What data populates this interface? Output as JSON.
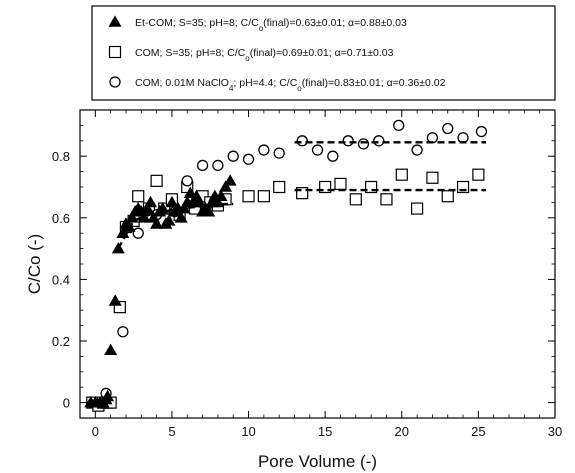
{
  "chart_data": {
    "type": "scatter",
    "xlabel": "Pore Volume (-)",
    "ylabel": "C/Co (-)",
    "xlim": [
      -1,
      30
    ],
    "ylim": [
      -0.05,
      0.95
    ],
    "x_ticks": [
      0,
      5,
      10,
      15,
      20,
      25,
      30
    ],
    "x_tick_labels": [
      "0",
      "5",
      "10",
      "15",
      "20",
      "25",
      "30"
    ],
    "y_ticks": [
      0,
      0.2,
      0.4,
      0.6,
      0.8
    ],
    "y_tick_labels": [
      "0",
      "0.2",
      "0.4",
      "0.6",
      "0.8"
    ],
    "legend_position": "top (above plot, boxed)",
    "series": [
      {
        "name": "Et-COM; S=35; pH=8; C/C",
        "name_sub": "o",
        "name_tail": "(final)=0.63±0.01; α=0.88±0.03",
        "marker": "triangle-filled",
        "points": [
          [
            -0.3,
            0.0
          ],
          [
            0.0,
            0.0
          ],
          [
            0.3,
            0.0
          ],
          [
            0.5,
            0.0
          ],
          [
            0.7,
            0.01
          ],
          [
            0.8,
            0.02
          ],
          [
            1.0,
            0.17
          ],
          [
            1.3,
            0.33
          ],
          [
            1.5,
            0.5
          ],
          [
            1.8,
            0.55
          ],
          [
            2.0,
            0.58
          ],
          [
            2.2,
            0.57
          ],
          [
            2.4,
            0.6
          ],
          [
            2.6,
            0.62
          ],
          [
            2.8,
            0.63
          ],
          [
            3.0,
            0.62
          ],
          [
            3.2,
            0.6
          ],
          [
            3.4,
            0.63
          ],
          [
            3.6,
            0.65
          ],
          [
            3.8,
            0.6
          ],
          [
            4.0,
            0.58
          ],
          [
            4.2,
            0.62
          ],
          [
            4.4,
            0.63
          ],
          [
            4.6,
            0.58
          ],
          [
            4.8,
            0.59
          ],
          [
            5.0,
            0.65
          ],
          [
            5.2,
            0.62
          ],
          [
            5.4,
            0.63
          ],
          [
            5.6,
            0.6
          ],
          [
            5.8,
            0.63
          ],
          [
            6.0,
            0.65
          ],
          [
            6.2,
            0.68
          ],
          [
            6.4,
            0.65
          ],
          [
            6.6,
            0.67
          ],
          [
            6.8,
            0.65
          ],
          [
            7.0,
            0.62
          ],
          [
            7.2,
            0.63
          ],
          [
            7.4,
            0.62
          ],
          [
            7.6,
            0.65
          ],
          [
            7.8,
            0.67
          ],
          [
            8.0,
            0.65
          ],
          [
            8.2,
            0.67
          ],
          [
            8.5,
            0.7
          ],
          [
            8.8,
            0.72
          ]
        ]
      },
      {
        "name": "COM; S=35; pH=8; C/C",
        "name_sub": "o",
        "name_tail": "(final)=0.69±0.01; α=0.71±0.03",
        "marker": "square-open",
        "points": [
          [
            -0.2,
            0.0
          ],
          [
            0.2,
            -0.01
          ],
          [
            0.5,
            0.0
          ],
          [
            0.8,
            0.0
          ],
          [
            1.0,
            0.0
          ],
          [
            1.6,
            0.31
          ],
          [
            2.0,
            0.57
          ],
          [
            2.5,
            0.59
          ],
          [
            2.8,
            0.67
          ],
          [
            3.5,
            0.63
          ],
          [
            4.0,
            0.72
          ],
          [
            4.5,
            0.63
          ],
          [
            5.0,
            0.66
          ],
          [
            5.5,
            0.61
          ],
          [
            6.0,
            0.7
          ],
          [
            6.5,
            0.63
          ],
          [
            7.0,
            0.67
          ],
          [
            7.5,
            0.65
          ],
          [
            8.0,
            0.64
          ],
          [
            8.5,
            0.66
          ],
          [
            10.0,
            0.67
          ],
          [
            11.0,
            0.67
          ],
          [
            12.0,
            0.7
          ],
          [
            13.5,
            0.68
          ],
          [
            15.0,
            0.7
          ],
          [
            16.0,
            0.71
          ],
          [
            17.0,
            0.66
          ],
          [
            18.0,
            0.7
          ],
          [
            19.0,
            0.66
          ],
          [
            20.0,
            0.74
          ],
          [
            21.0,
            0.63
          ],
          [
            22.0,
            0.73
          ],
          [
            23.0,
            0.67
          ],
          [
            24.0,
            0.7
          ],
          [
            25.0,
            0.74
          ]
        ]
      },
      {
        "name": "COM; 0.01M NaClO",
        "name_sub": "4",
        "name_tail": "; pH=4.4; C/C",
        "name_sub2": "o",
        "name_tail2": "(final)=0.83±0.01; α=0.36±0.02",
        "marker": "circle-open",
        "points": [
          [
            0.7,
            0.03
          ],
          [
            1.8,
            0.23
          ],
          [
            2.8,
            0.55
          ],
          [
            4.0,
            0.61
          ],
          [
            5.2,
            0.62
          ],
          [
            6.0,
            0.72
          ],
          [
            7.0,
            0.77
          ],
          [
            8.0,
            0.77
          ],
          [
            9.0,
            0.8
          ],
          [
            10.0,
            0.79
          ],
          [
            11.0,
            0.82
          ],
          [
            12.0,
            0.81
          ],
          [
            13.5,
            0.85
          ],
          [
            14.5,
            0.82
          ],
          [
            15.5,
            0.8
          ],
          [
            16.5,
            0.85
          ],
          [
            17.5,
            0.84
          ],
          [
            18.5,
            0.85
          ],
          [
            19.8,
            0.9
          ],
          [
            21.0,
            0.82
          ],
          [
            22.0,
            0.86
          ],
          [
            23.0,
            0.89
          ],
          [
            24.0,
            0.86
          ],
          [
            25.2,
            0.88
          ]
        ]
      }
    ],
    "model_lines": [
      {
        "style": "dashed",
        "series": "Et-COM",
        "points": [
          [
            1.5,
            0.5
          ],
          [
            2.5,
            0.59
          ],
          [
            3.5,
            0.61
          ],
          [
            4.5,
            0.62
          ],
          [
            5.5,
            0.63
          ],
          [
            6.5,
            0.635
          ],
          [
            7.5,
            0.64
          ],
          [
            8.5,
            0.645
          ],
          [
            9.0,
            0.645
          ]
        ]
      },
      {
        "style": "dashed",
        "series": "COM S=35",
        "points": [
          [
            13.0,
            0.69
          ],
          [
            25.5,
            0.69
          ]
        ]
      },
      {
        "style": "dashed",
        "series": "COM NaClO4",
        "points": [
          [
            13.0,
            0.845
          ],
          [
            25.5,
            0.845
          ]
        ]
      }
    ]
  }
}
